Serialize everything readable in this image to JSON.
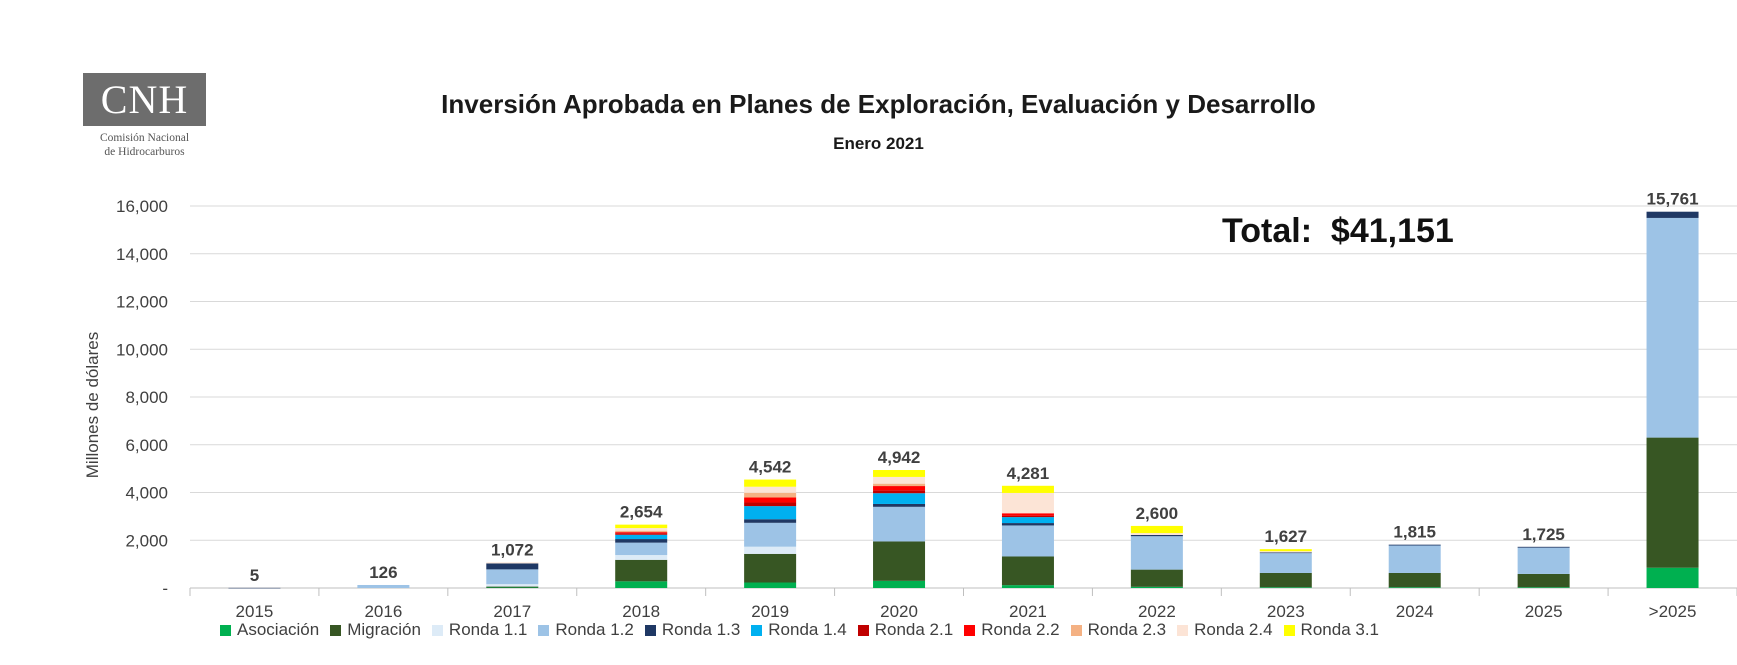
{
  "logo": {
    "text": "CNH",
    "subtitle_line1": "Comisión Nacional",
    "subtitle_line2": "de Hidrocarburos"
  },
  "title": "Inversión Aprobada en Planes de Exploración, Evaluación y Desarrollo",
  "subtitle": "Enero 2021",
  "total_label": "Total:  $41,151",
  "chart_data": {
    "type": "bar",
    "stacked": true,
    "categories": [
      "2015",
      "2016",
      "2017",
      "2018",
      "2019",
      "2020",
      "2021",
      "2022",
      "2023",
      "2024",
      "2025",
      ">2025"
    ],
    "totals": [
      "5",
      "126",
      "1,072",
      "2,654",
      "4,542",
      "4,942",
      "4,281",
      "2,600",
      "1,627",
      "1,815",
      "1,725",
      "15,761"
    ],
    "ylabel": "Millones de dólares",
    "ylim": [
      0,
      16000
    ],
    "yticks": [
      {
        "value": 0,
        "label": "-"
      },
      {
        "value": 2000,
        "label": "2,000"
      },
      {
        "value": 4000,
        "label": "4,000"
      },
      {
        "value": 6000,
        "label": "6,000"
      },
      {
        "value": 8000,
        "label": "8,000"
      },
      {
        "value": 10000,
        "label": "10,000"
      },
      {
        "value": 12000,
        "label": "12,000"
      },
      {
        "value": 14000,
        "label": "14,000"
      },
      {
        "value": 16000,
        "label": "16,000"
      }
    ],
    "grid": true,
    "legend_position": "bottom",
    "series": [
      {
        "name": "Asociación",
        "color": "#00b050",
        "values": [
          0,
          0,
          20,
          280,
          230,
          300,
          120,
          50,
          30,
          30,
          30,
          850
        ]
      },
      {
        "name": "Migración",
        "color": "#375623",
        "values": [
          0,
          0,
          40,
          900,
          1200,
          1650,
          1200,
          720,
          600,
          600,
          560,
          5450
        ]
      },
      {
        "name": "Ronda 1.1",
        "color": "#ddebf7",
        "values": [
          0,
          0,
          100,
          200,
          300,
          0,
          0,
          0,
          0,
          0,
          0,
          0
        ]
      },
      {
        "name": "Ronda 1.2",
        "color": "#9dc3e6",
        "values": [
          0,
          126,
          620,
          520,
          1000,
          1450,
          1300,
          1400,
          830,
          1150,
          1100,
          9200
        ]
      },
      {
        "name": "Ronda 1.3",
        "color": "#1f3864",
        "values": [
          5,
          0,
          250,
          150,
          150,
          120,
          100,
          50,
          30,
          35,
          35,
          261
        ]
      },
      {
        "name": "Ronda 1.4",
        "color": "#00b0f0",
        "values": [
          0,
          0,
          0,
          180,
          550,
          450,
          250,
          0,
          0,
          0,
          0,
          0
        ]
      },
      {
        "name": "Ronda 2.1",
        "color": "#c00000",
        "values": [
          0,
          0,
          0,
          60,
          150,
          120,
          60,
          0,
          0,
          0,
          0,
          0
        ]
      },
      {
        "name": "Ronda 2.2",
        "color": "#ff0000",
        "values": [
          0,
          0,
          0,
          50,
          210,
          180,
          100,
          0,
          0,
          0,
          0,
          0
        ]
      },
      {
        "name": "Ronda 2.3",
        "color": "#f4b183",
        "values": [
          0,
          0,
          0,
          60,
          200,
          100,
          0,
          0,
          0,
          0,
          0,
          0
        ]
      },
      {
        "name": "Ronda 2.4",
        "color": "#fce4d6",
        "values": [
          0,
          0,
          42,
          110,
          252,
          282,
          851,
          80,
          52,
          0,
          0,
          0
        ]
      },
      {
        "name": "Ronda 3.1",
        "color": "#ffff00",
        "values": [
          0,
          0,
          0,
          144,
          300,
          290,
          300,
          300,
          85,
          0,
          0,
          0
        ]
      }
    ]
  }
}
